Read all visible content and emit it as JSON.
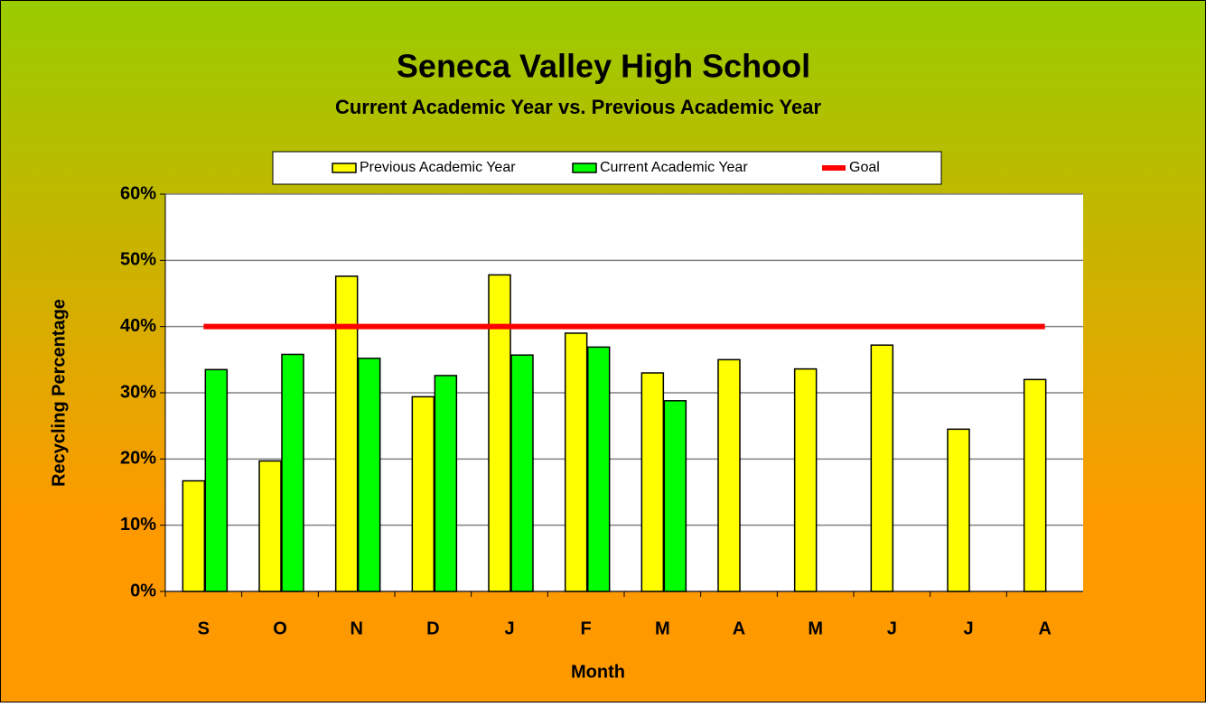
{
  "chart_data": {
    "type": "bar",
    "title": "Seneca Valley High School",
    "subtitle": "Current Academic Year vs. Previous Academic Year",
    "x_label": "Month",
    "y_label": "Recycling Percentage",
    "categories": [
      "S",
      "O",
      "N",
      "D",
      "J",
      "F",
      "M",
      "A",
      "M",
      "J",
      "J",
      "A"
    ],
    "series": [
      {
        "name": "Previous Academic Year",
        "type": "bar",
        "color": "#ffff00",
        "values": [
          16.7,
          19.7,
          47.6,
          29.4,
          47.8,
          39.0,
          33.0,
          35.0,
          33.6,
          37.2,
          24.5,
          32.0
        ]
      },
      {
        "name": "Current Academic Year",
        "type": "bar",
        "color": "#00ff00",
        "values": [
          33.5,
          35.8,
          35.2,
          32.6,
          35.7,
          36.9,
          28.8,
          null,
          null,
          null,
          null,
          null
        ]
      },
      {
        "name": "Goal",
        "type": "line",
        "color": "#ff0000",
        "values": [
          40,
          40,
          40,
          40,
          40,
          40,
          40,
          40,
          40,
          40,
          40,
          40
        ]
      }
    ],
    "ylim": [
      0,
      60
    ],
    "yticks": [
      {
        "value": 0,
        "label": "0%"
      },
      {
        "value": 10,
        "label": "10%"
      },
      {
        "value": 20,
        "label": "20%"
      },
      {
        "value": 30,
        "label": "30%"
      },
      {
        "value": 40,
        "label": "40%"
      },
      {
        "value": 50,
        "label": "50%"
      },
      {
        "value": 60,
        "label": "60%"
      }
    ],
    "grid": true,
    "legend": "top"
  }
}
